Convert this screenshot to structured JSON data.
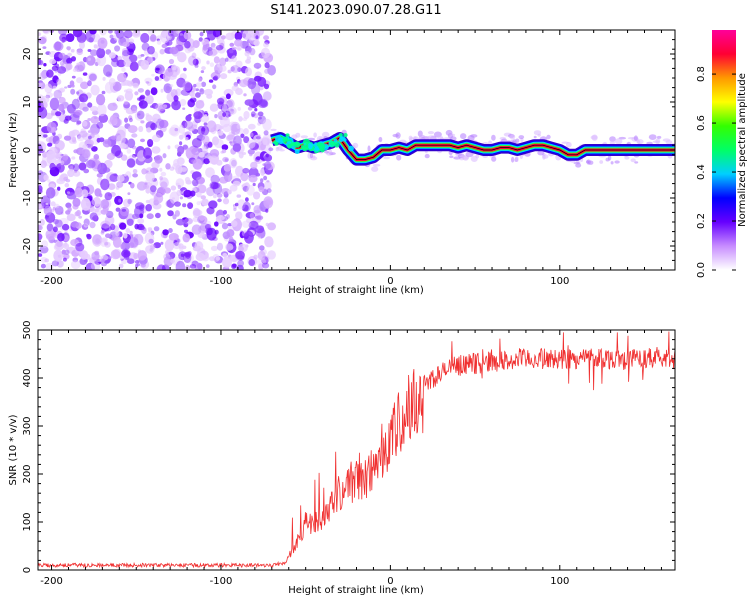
{
  "title": "S141.2023.090.07.28.G11",
  "chart_data": [
    {
      "type": "heatmap",
      "name": "spectrogram",
      "xlabel": "Height of straight line (km)",
      "ylabel": "Frequency (Hz)",
      "xlim": [
        -208,
        168
      ],
      "ylim": [
        -25,
        25
      ],
      "xticks": [
        -200,
        -100,
        0,
        100
      ],
      "yticks": [
        20,
        10,
        0,
        -10,
        -20
      ],
      "noise_region_x": [
        -208,
        -70
      ],
      "signal_ridge": {
        "x": [
          -70,
          -65,
          -60,
          -55,
          -50,
          -45,
          -40,
          -35,
          -30,
          -25,
          -20,
          -15,
          -10,
          -5,
          0,
          5,
          10,
          15,
          20,
          25,
          30,
          35,
          40,
          45,
          50,
          55,
          60,
          65,
          70,
          75,
          80,
          85,
          90,
          95,
          100,
          105,
          110,
          115,
          120,
          125,
          130,
          135,
          140,
          145,
          150,
          155,
          160,
          168
        ],
        "freq": [
          2,
          2.5,
          1.5,
          0.5,
          1,
          0.5,
          1,
          1.5,
          2.5,
          0,
          -2,
          -2,
          -1.5,
          0,
          0,
          0.5,
          0,
          1,
          1,
          1,
          1,
          1,
          0.5,
          1,
          0.5,
          0,
          0,
          0.5,
          0.5,
          0,
          0.5,
          1,
          1,
          0.5,
          0,
          -1,
          -1,
          0,
          0,
          0,
          0,
          0,
          0,
          0,
          0,
          0,
          0,
          0
        ]
      },
      "colorbar": {
        "label": "Normalized spectral amplitude",
        "ticks": [
          "0.0",
          "0.2",
          "0.4",
          "0.6",
          "0.8"
        ],
        "tick_values": [
          0,
          0.2,
          0.4,
          0.6,
          0.8
        ],
        "range": [
          0,
          0.98
        ],
        "colors": [
          "#ffffff",
          "#c78cff",
          "#6600ff",
          "#0000ff",
          "#00cfff",
          "#00ff66",
          "#33ff00",
          "#ffff00",
          "#ff9900",
          "#ff0033",
          "#ff0099"
        ]
      }
    },
    {
      "type": "line",
      "name": "snr",
      "xlabel": "Height of straight line (km)",
      "ylabel": "SNR (10 * v/v)",
      "xlim": [
        -208,
        168
      ],
      "ylim": [
        0,
        500
      ],
      "xticks": [
        -200,
        -100,
        0,
        100
      ],
      "yticks": [
        500,
        400,
        300,
        200,
        100,
        0
      ],
      "color": "#f03030",
      "envelope": {
        "x": [
          -208,
          -180,
          -150,
          -120,
          -90,
          -70,
          -62,
          -55,
          -50,
          -45,
          -40,
          -35,
          -30,
          -25,
          -20,
          -15,
          -10,
          -5,
          0,
          5,
          10,
          15,
          20,
          25,
          30,
          35,
          40,
          45,
          50,
          60,
          70,
          80,
          90,
          100,
          110,
          120,
          130,
          140,
          150,
          160,
          168
        ],
        "y": [
          10,
          10,
          10,
          10,
          10,
          10,
          15,
          60,
          100,
          90,
          110,
          140,
          160,
          180,
          185,
          190,
          210,
          250,
          270,
          300,
          330,
          355,
          385,
          400,
          410,
          420,
          425,
          430,
          430,
          435,
          435,
          440,
          440,
          440,
          440,
          445,
          440,
          440,
          440,
          440,
          440
        ]
      }
    }
  ]
}
